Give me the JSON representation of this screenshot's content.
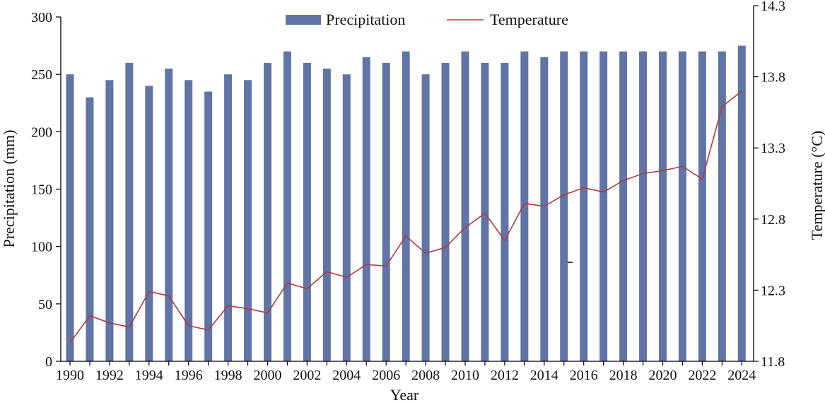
{
  "chart_data": {
    "type": "bar+line",
    "x": [
      1990,
      1991,
      1992,
      1993,
      1994,
      1995,
      1996,
      1997,
      1998,
      1999,
      2000,
      2001,
      2002,
      2003,
      2004,
      2005,
      2006,
      2007,
      2008,
      2009,
      2010,
      2011,
      2012,
      2013,
      2014,
      2015,
      2016,
      2017,
      2018,
      2019,
      2020,
      2021,
      2022,
      2023,
      2024
    ],
    "x_tick_labels": [
      "1990",
      "1992",
      "1994",
      "1996",
      "1998",
      "2000",
      "2002",
      "2004",
      "2006",
      "2008",
      "2010",
      "2012",
      "2014",
      "2016",
      "2018",
      "2020",
      "2022",
      "2024"
    ],
    "series": [
      {
        "name": "Precipitation",
        "kind": "bar",
        "axis": "left",
        "values": [
          250,
          230,
          245,
          260,
          240,
          255,
          245,
          235,
          250,
          245,
          260,
          270,
          260,
          255,
          250,
          265,
          260,
          270,
          250,
          260,
          270,
          260,
          260,
          270,
          265,
          270,
          270,
          270,
          270,
          270,
          270,
          270,
          270,
          270,
          275
        ]
      },
      {
        "name": "Temperature",
        "kind": "line",
        "axis": "right",
        "values": [
          11.93,
          12.12,
          12.07,
          12.04,
          12.29,
          12.26,
          12.05,
          12.02,
          12.19,
          12.17,
          12.14,
          12.35,
          12.31,
          12.43,
          12.39,
          12.48,
          12.47,
          12.68,
          12.56,
          12.6,
          12.74,
          12.84,
          12.65,
          12.91,
          12.89,
          12.97,
          13.02,
          12.99,
          13.07,
          13.12,
          13.14,
          13.17,
          13.08,
          13.59,
          13.7
        ]
      }
    ],
    "xlabel": "Year",
    "ylabel": "Precipitation (mm)",
    "y2label": "Temperature (°C)",
    "ylim": [
      0,
      300
    ],
    "yticks": [
      "0",
      "50",
      "100",
      "150",
      "200",
      "250",
      "300"
    ],
    "y2lim": [
      11.8,
      14.3
    ],
    "y2ticks": [
      "11.8",
      "12.3",
      "12.8",
      "13.3",
      "13.8",
      "14.3"
    ],
    "legend_position": "top-center",
    "grid": false,
    "colors": {
      "bar": "#6074a6",
      "line": "#b03a3a",
      "axis": "#000000"
    }
  }
}
